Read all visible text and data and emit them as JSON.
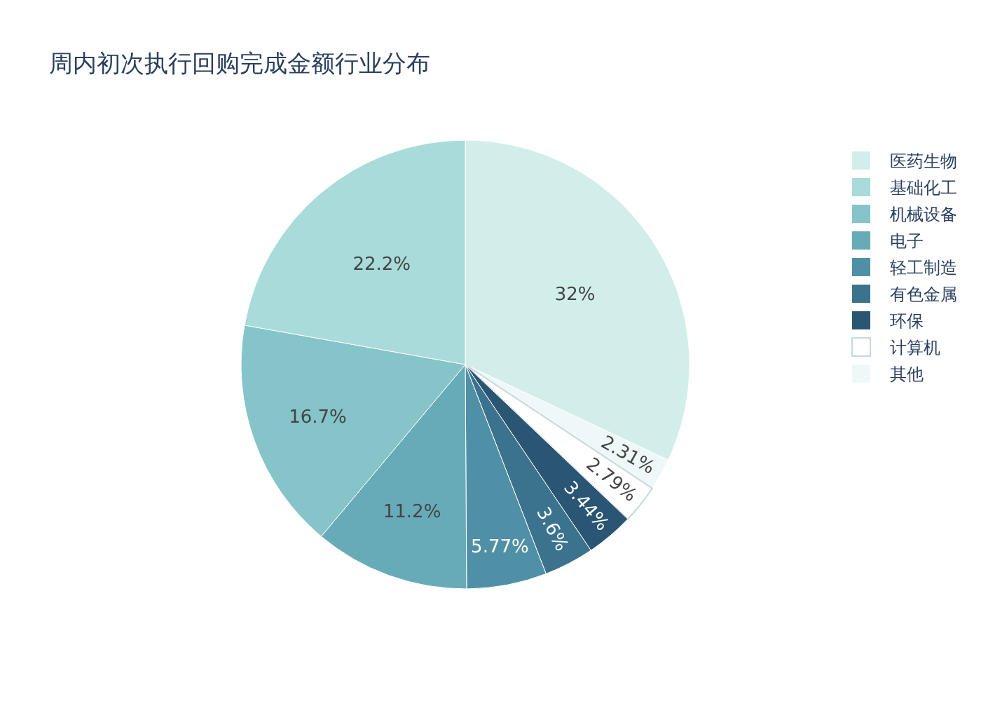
{
  "chart_data": {
    "type": "pie",
    "title": "周内初次执行回购完成金额行业分布",
    "categories": [
      "医药生物",
      "基础化工",
      "机械设备",
      "电子",
      "轻工制造",
      "有色金属",
      "环保",
      "计算机",
      "其他"
    ],
    "values": [
      32,
      22.2,
      16.7,
      11.2,
      5.77,
      3.6,
      3.44,
      2.79,
      2.31
    ],
    "value_labels": [
      "32%",
      "22.2%",
      "16.7%",
      "11.2%",
      "5.77%",
      "3.6%",
      "3.44%",
      "2.79%",
      "2.31%"
    ],
    "colors": [
      "#d1eeea",
      "#a8dbd9",
      "#85c4c9",
      "#68abb8",
      "#4f90a6",
      "#3b738f",
      "#2a5674",
      "#ffffff",
      "#eff8f8"
    ],
    "legend": "top right"
  }
}
